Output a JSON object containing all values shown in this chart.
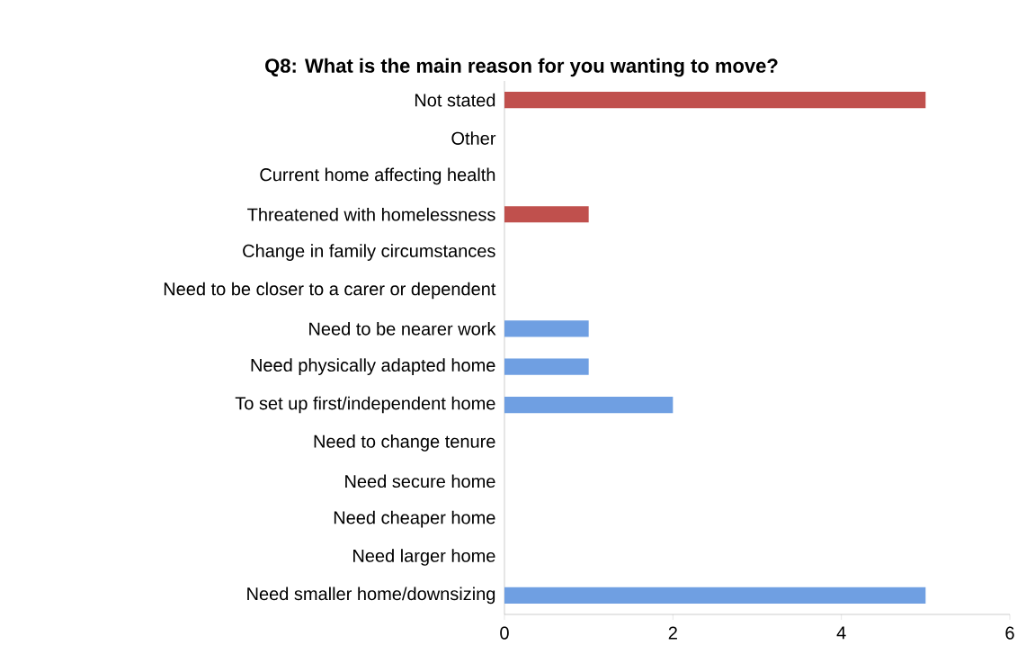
{
  "chart_data": {
    "type": "bar",
    "orientation": "horizontal",
    "title": "Q8: What is the main reason for you wanting to move?",
    "categories": [
      "Not stated",
      "Other",
      "Current home affecting health",
      "Threatened with homelessness",
      "Change in family circumstances",
      "Need to be closer to a carer or dependent",
      "Need to be nearer work",
      "Need physically adapted home",
      "To set up first/independent home",
      "Need to change tenure",
      "Need secure home",
      "Need cheaper home",
      "Need larger home",
      "Need smaller home/downsizing"
    ],
    "values": [
      5,
      0,
      0,
      1,
      0,
      0,
      1,
      1,
      2,
      0,
      0,
      0,
      0,
      5
    ],
    "colors": [
      "#c0504d",
      "#c0504d",
      "#c0504d",
      "#c0504d",
      "#c0504d",
      "#6f9fe2",
      "#6f9fe2",
      "#6f9fe2",
      "#6f9fe2",
      "#6f9fe2",
      "#6f9fe2",
      "#6f9fe2",
      "#6f9fe2",
      "#6f9fe2"
    ],
    "xlim": [
      0,
      6
    ],
    "xticks": [
      0,
      2,
      4,
      6
    ],
    "grid": false
  }
}
